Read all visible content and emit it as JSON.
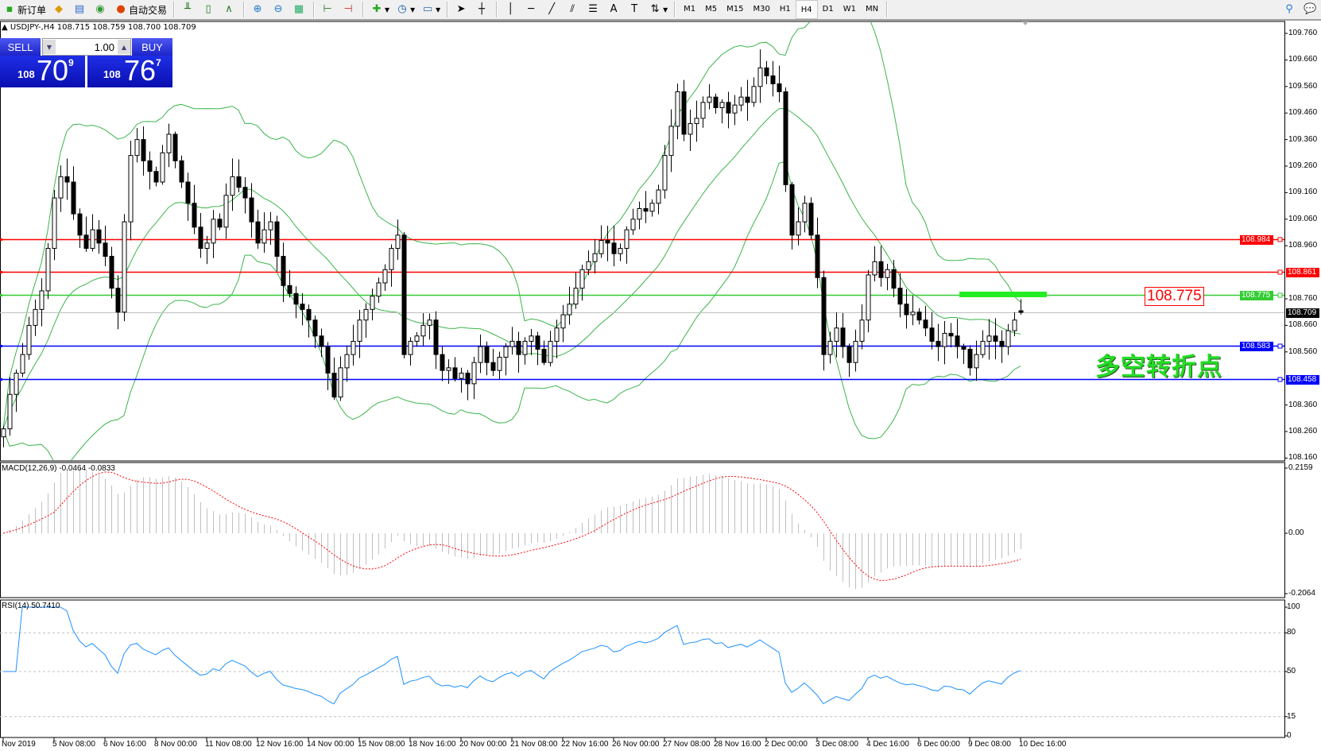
{
  "toolbar": {
    "new_order": "新订单",
    "auto_trading": "自动交易",
    "timeframes": [
      "M1",
      "M5",
      "M15",
      "M30",
      "H1",
      "H4",
      "D1",
      "W1",
      "MN"
    ],
    "active_timeframe": "H4",
    "icons": [
      "new-order-icon",
      "metaeditor-icon",
      "navigator-icon",
      "signal-icon",
      "auto-trading-icon",
      "bar-chart-icon",
      "candlestick-icon",
      "line-chart-icon",
      "zoom-in-icon",
      "zoom-out-icon",
      "tile-windows-icon",
      "chart-shift-icon",
      "autoscroll-icon",
      "indicators-icon",
      "periods-icon",
      "templates-icon",
      "cursor-icon",
      "crosshair-icon",
      "vertical-line-icon",
      "horizontal-line-icon",
      "trendline-icon",
      "fibonacci-icon",
      "fibo-fan-icon",
      "text-icon",
      "text-label-icon",
      "arrows-icon",
      "search-icon",
      "chat-icon"
    ]
  },
  "symbol_header": "USDJPY-,H4  108.715 108.759 108.700 108.709",
  "one_click": {
    "sell_label": "SELL",
    "buy_label": "BUY",
    "lot": "1.00",
    "sell_prefix": "108",
    "sell_big": "70",
    "sell_sup": "9",
    "buy_prefix": "108",
    "buy_big": "76",
    "buy_sup": "7"
  },
  "annotation_text": "多空转折点",
  "callout_label": "108.775",
  "colors": {
    "bull_body": "#ffffff",
    "bear_body": "#000000",
    "bollinger": "#3cb44b",
    "macd_hist": "#c0c0c0",
    "macd_signal": "#ff0000",
    "rsi": "#1e90ff",
    "resistance": "#ff0000",
    "pivot": "#33cc33",
    "support": "#0000ff",
    "bid_line": "#c0c0c0"
  },
  "chart_data": [
    {
      "type": "candlestick",
      "symbol": "USDJPY-",
      "timeframe": "H4",
      "ylim": [
        108.16,
        109.78
      ],
      "y_ticks": [
        "109.760",
        "109.660",
        "109.560",
        "109.460",
        "109.360",
        "109.260",
        "109.160",
        "109.060",
        "108.960",
        "108.760",
        "108.660",
        "108.560",
        "108.360",
        "108.260",
        "108.160"
      ],
      "x_tick_labels": [
        "Nov 2019",
        "5 Nov 08:00",
        "6 Nov 16:00",
        "8 Nov 00:00",
        "11 Nov 08:00",
        "12 Nov 16:00",
        "14 Nov 00:00",
        "15 Nov 08:00",
        "18 Nov 16:00",
        "20 Nov 00:00",
        "21 Nov 08:00",
        "22 Nov 16:00",
        "26 Nov 00:00",
        "27 Nov 08:00",
        "28 Nov 16:00",
        "2 Dec 00:00",
        "3 Dec 08:00",
        "4 Dec 16:00",
        "6 Dec 00:00",
        "9 Dec 08:00",
        "10 Dec 16:00"
      ],
      "closes": [
        108.27,
        108.4,
        108.48,
        108.55,
        108.66,
        108.72,
        108.79,
        108.95,
        109.14,
        109.22,
        109.2,
        109.08,
        109.0,
        108.95,
        109.02,
        108.97,
        108.92,
        108.8,
        108.71,
        109.05,
        109.3,
        109.36,
        109.28,
        109.24,
        109.2,
        109.31,
        109.38,
        109.28,
        109.2,
        109.12,
        109.03,
        108.95,
        108.97,
        109.06,
        109.03,
        109.15,
        109.22,
        109.18,
        109.14,
        109.05,
        108.97,
        109.02,
        109.05,
        108.92,
        108.81,
        108.78,
        108.74,
        108.72,
        108.68,
        108.62,
        108.58,
        108.48,
        108.39,
        108.5,
        108.55,
        108.6,
        108.68,
        108.72,
        108.77,
        108.82,
        108.87,
        108.95,
        109.0,
        108.55,
        108.6,
        108.62,
        108.66,
        108.68,
        108.55,
        108.49,
        108.5,
        108.46,
        108.48,
        108.44,
        108.52,
        108.58,
        108.52,
        108.49,
        108.54,
        108.58,
        108.6,
        108.55,
        108.6,
        108.62,
        108.57,
        108.52,
        108.6,
        108.65,
        108.7,
        108.74,
        108.8,
        108.87,
        108.9,
        108.93,
        108.98,
        108.97,
        108.93,
        108.95,
        109.02,
        109.06,
        109.1,
        109.09,
        109.12,
        109.17,
        109.3,
        109.41,
        109.54,
        109.38,
        109.42,
        109.44,
        109.5,
        109.52,
        109.48,
        109.5,
        109.46,
        109.49,
        109.52,
        109.5,
        109.56,
        109.63,
        109.6,
        109.57,
        109.54,
        109.19,
        109.0,
        109.05,
        109.12,
        109.0,
        108.84,
        108.55,
        108.6,
        108.65,
        108.58,
        108.52,
        108.6,
        108.68,
        108.85,
        108.9,
        108.84,
        108.87,
        108.8,
        108.74,
        108.7,
        108.71,
        108.68,
        108.65,
        108.6,
        108.58,
        108.63,
        108.62,
        108.58,
        108.57,
        108.5,
        108.55,
        108.6,
        108.62,
        108.6,
        108.58,
        108.64,
        108.68,
        108.709
      ],
      "last_candle": {
        "open": 108.715,
        "high": 108.759,
        "low": 108.7,
        "close": 108.709
      },
      "horizontal_lines": [
        {
          "price": "108.984",
          "color": "#ff0000"
        },
        {
          "price": "108.861",
          "color": "#ff0000"
        },
        {
          "price": "108.775",
          "color": "#33cc33"
        },
        {
          "price": "108.709",
          "color": "#000000"
        },
        {
          "price": "108.583",
          "color": "#0000ff"
        },
        {
          "price": "108.458",
          "color": "#0000ff"
        }
      ],
      "indicator": "Bollinger Bands"
    },
    {
      "type": "bar",
      "title": "MACD(12,26,9) -0.0464 -0.0833",
      "ylim": [
        -0.2064,
        0.2159
      ],
      "y_ticks": [
        "0.2159",
        "0.00",
        "-0.2064"
      ]
    },
    {
      "type": "line",
      "title": "RSI(14) 50.7410",
      "ylim": [
        0,
        100
      ],
      "y_ticks": [
        "100",
        "80",
        "50",
        "15",
        "0"
      ],
      "levels": [
        80,
        50,
        15
      ]
    }
  ]
}
